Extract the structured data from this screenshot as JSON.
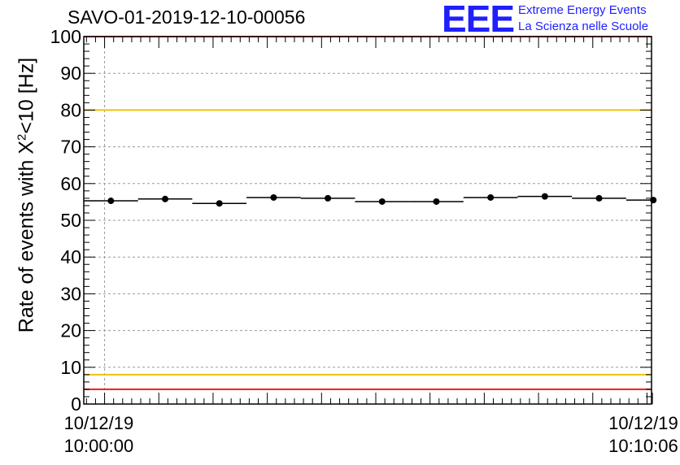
{
  "title": "SAVO-01-2019-12-10-00056",
  "logo": {
    "mark": "EEE",
    "line1": "Extreme Energy Events",
    "line2": "La Scienza nelle Scuole"
  },
  "chart_data": {
    "type": "scatter",
    "title": "SAVO-01-2019-12-10-00056",
    "xlabel": "",
    "ylabel_main": "Rate of events with X",
    "ylabel_sup": "2",
    "ylabel_tail": "<10 [Hz]",
    "ylim": [
      0,
      100
    ],
    "yticks": [
      0,
      10,
      20,
      30,
      40,
      50,
      60,
      70,
      80,
      90,
      100
    ],
    "x_unit": "seconds from 10/12/19 10:00:00",
    "xlim": [
      -23,
      605
    ],
    "xticks": [
      {
        "x": 0,
        "date": "10/12/19",
        "time": "10:00:00"
      },
      {
        "x": 606,
        "date": "10/12/19",
        "time": "10:10:06"
      }
    ],
    "bin_width": 60,
    "points": [
      {
        "x": 7,
        "y": 55.3
      },
      {
        "x": 67,
        "y": 55.8
      },
      {
        "x": 127,
        "y": 54.6
      },
      {
        "x": 187,
        "y": 56.2
      },
      {
        "x": 247,
        "y": 56.0
      },
      {
        "x": 307,
        "y": 55.1
      },
      {
        "x": 367,
        "y": 55.1
      },
      {
        "x": 427,
        "y": 56.2
      },
      {
        "x": 487,
        "y": 56.5
      },
      {
        "x": 547,
        "y": 56.0
      },
      {
        "x": 607,
        "y": 55.5
      }
    ],
    "reference_lines": [
      {
        "y": 100,
        "color": "#e8201c"
      },
      {
        "y": 80,
        "color": "#f0c010"
      },
      {
        "y": 8,
        "color": "#f0c010"
      },
      {
        "y": 4,
        "color": "#e8201c"
      }
    ],
    "grid": true
  }
}
